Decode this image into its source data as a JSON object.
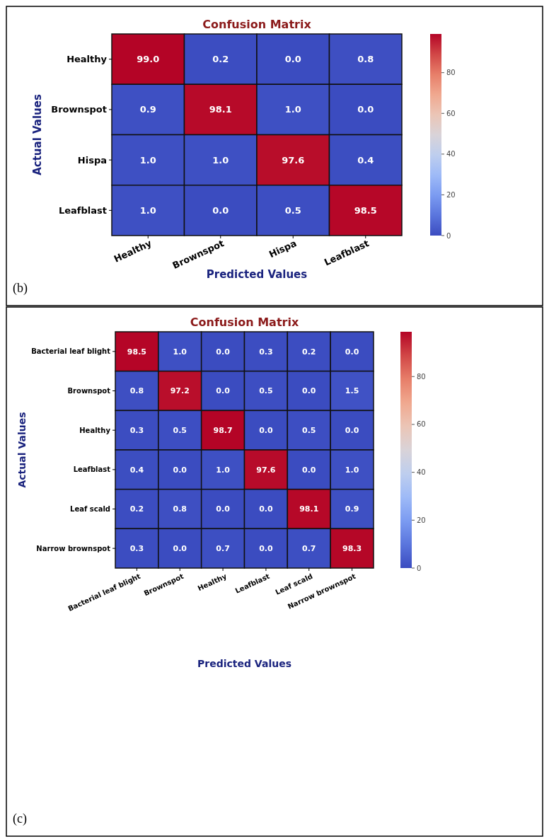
{
  "chart_data": [
    {
      "type": "heatmap",
      "title": "Confusion Matrix",
      "xlabel": "Predicted Values",
      "ylabel": "Actual Values",
      "categories": [
        "Healthy",
        "Brownspot",
        "Hispa",
        "Leafblast"
      ],
      "y_categories": [
        "Healthy",
        "Brownspot",
        "Hispa",
        "Leafblast"
      ],
      "cells": [
        [
          99.0,
          0.2,
          0.0,
          0.8
        ],
        [
          0.9,
          98.1,
          1.0,
          0.0
        ],
        [
          1.0,
          1.0,
          97.6,
          0.4
        ],
        [
          1.0,
          0.0,
          0.5,
          98.5
        ]
      ],
      "cell_labels": [
        [
          "99.0",
          "0.2",
          "0.0",
          "0.8"
        ],
        [
          "0.9",
          "98.1",
          "1.0",
          "0.0"
        ],
        [
          "1.0",
          "1.0",
          "97.6",
          "0.4"
        ],
        [
          "1.0",
          "0.0",
          "0.5",
          "98.5"
        ]
      ],
      "clim": [
        0,
        99.0
      ],
      "cticks": [
        0,
        20,
        40,
        60,
        80
      ],
      "annotations": [
        "(b)"
      ]
    },
    {
      "type": "heatmap",
      "title": "Confusion Matrix",
      "xlabel": "Predicted Values",
      "ylabel": "Actual Values",
      "categories": [
        "Bacterial leaf blight",
        "Brownspot",
        "Healthy",
        "Leafblast",
        "Leaf scald",
        "Narrow brownspot"
      ],
      "y_categories": [
        "Bacterial leaf blight",
        "Brownspot",
        "Healthy",
        "Leafblast",
        "Leaf scald",
        "Narrow brownspot"
      ],
      "cells": [
        [
          98.5,
          1.0,
          0.0,
          0.3,
          0.2,
          0.0
        ],
        [
          0.8,
          97.2,
          0.0,
          0.5,
          0.0,
          1.5
        ],
        [
          0.3,
          0.5,
          98.7,
          0.0,
          0.5,
          0.0
        ],
        [
          0.4,
          0.0,
          1.0,
          97.6,
          0.0,
          1.0
        ],
        [
          0.2,
          0.8,
          0.0,
          0.0,
          98.1,
          0.9
        ],
        [
          0.3,
          0.0,
          0.7,
          0.0,
          0.7,
          98.3
        ]
      ],
      "cell_labels": [
        [
          "98.5",
          "1.0",
          "0.0",
          "0.3",
          "0.2",
          "0.0"
        ],
        [
          "0.8",
          "97.2",
          "0.0",
          "0.5",
          "0.0",
          "1.5"
        ],
        [
          "0.3",
          "0.5",
          "98.7",
          "0.0",
          "0.5",
          "0.0"
        ],
        [
          "0.4",
          "0.0",
          "1.0",
          "97.6",
          "0.0",
          "1.0"
        ],
        [
          "0.2",
          "0.8",
          "0.0",
          "0.0",
          "98.1",
          "0.9"
        ],
        [
          "0.3",
          "0.0",
          "0.7",
          "0.0",
          "0.7",
          "98.3"
        ]
      ],
      "clim": [
        0,
        98.7
      ],
      "cticks": [
        0,
        20,
        40,
        60,
        80
      ],
      "annotations": [
        "(c)"
      ]
    }
  ]
}
